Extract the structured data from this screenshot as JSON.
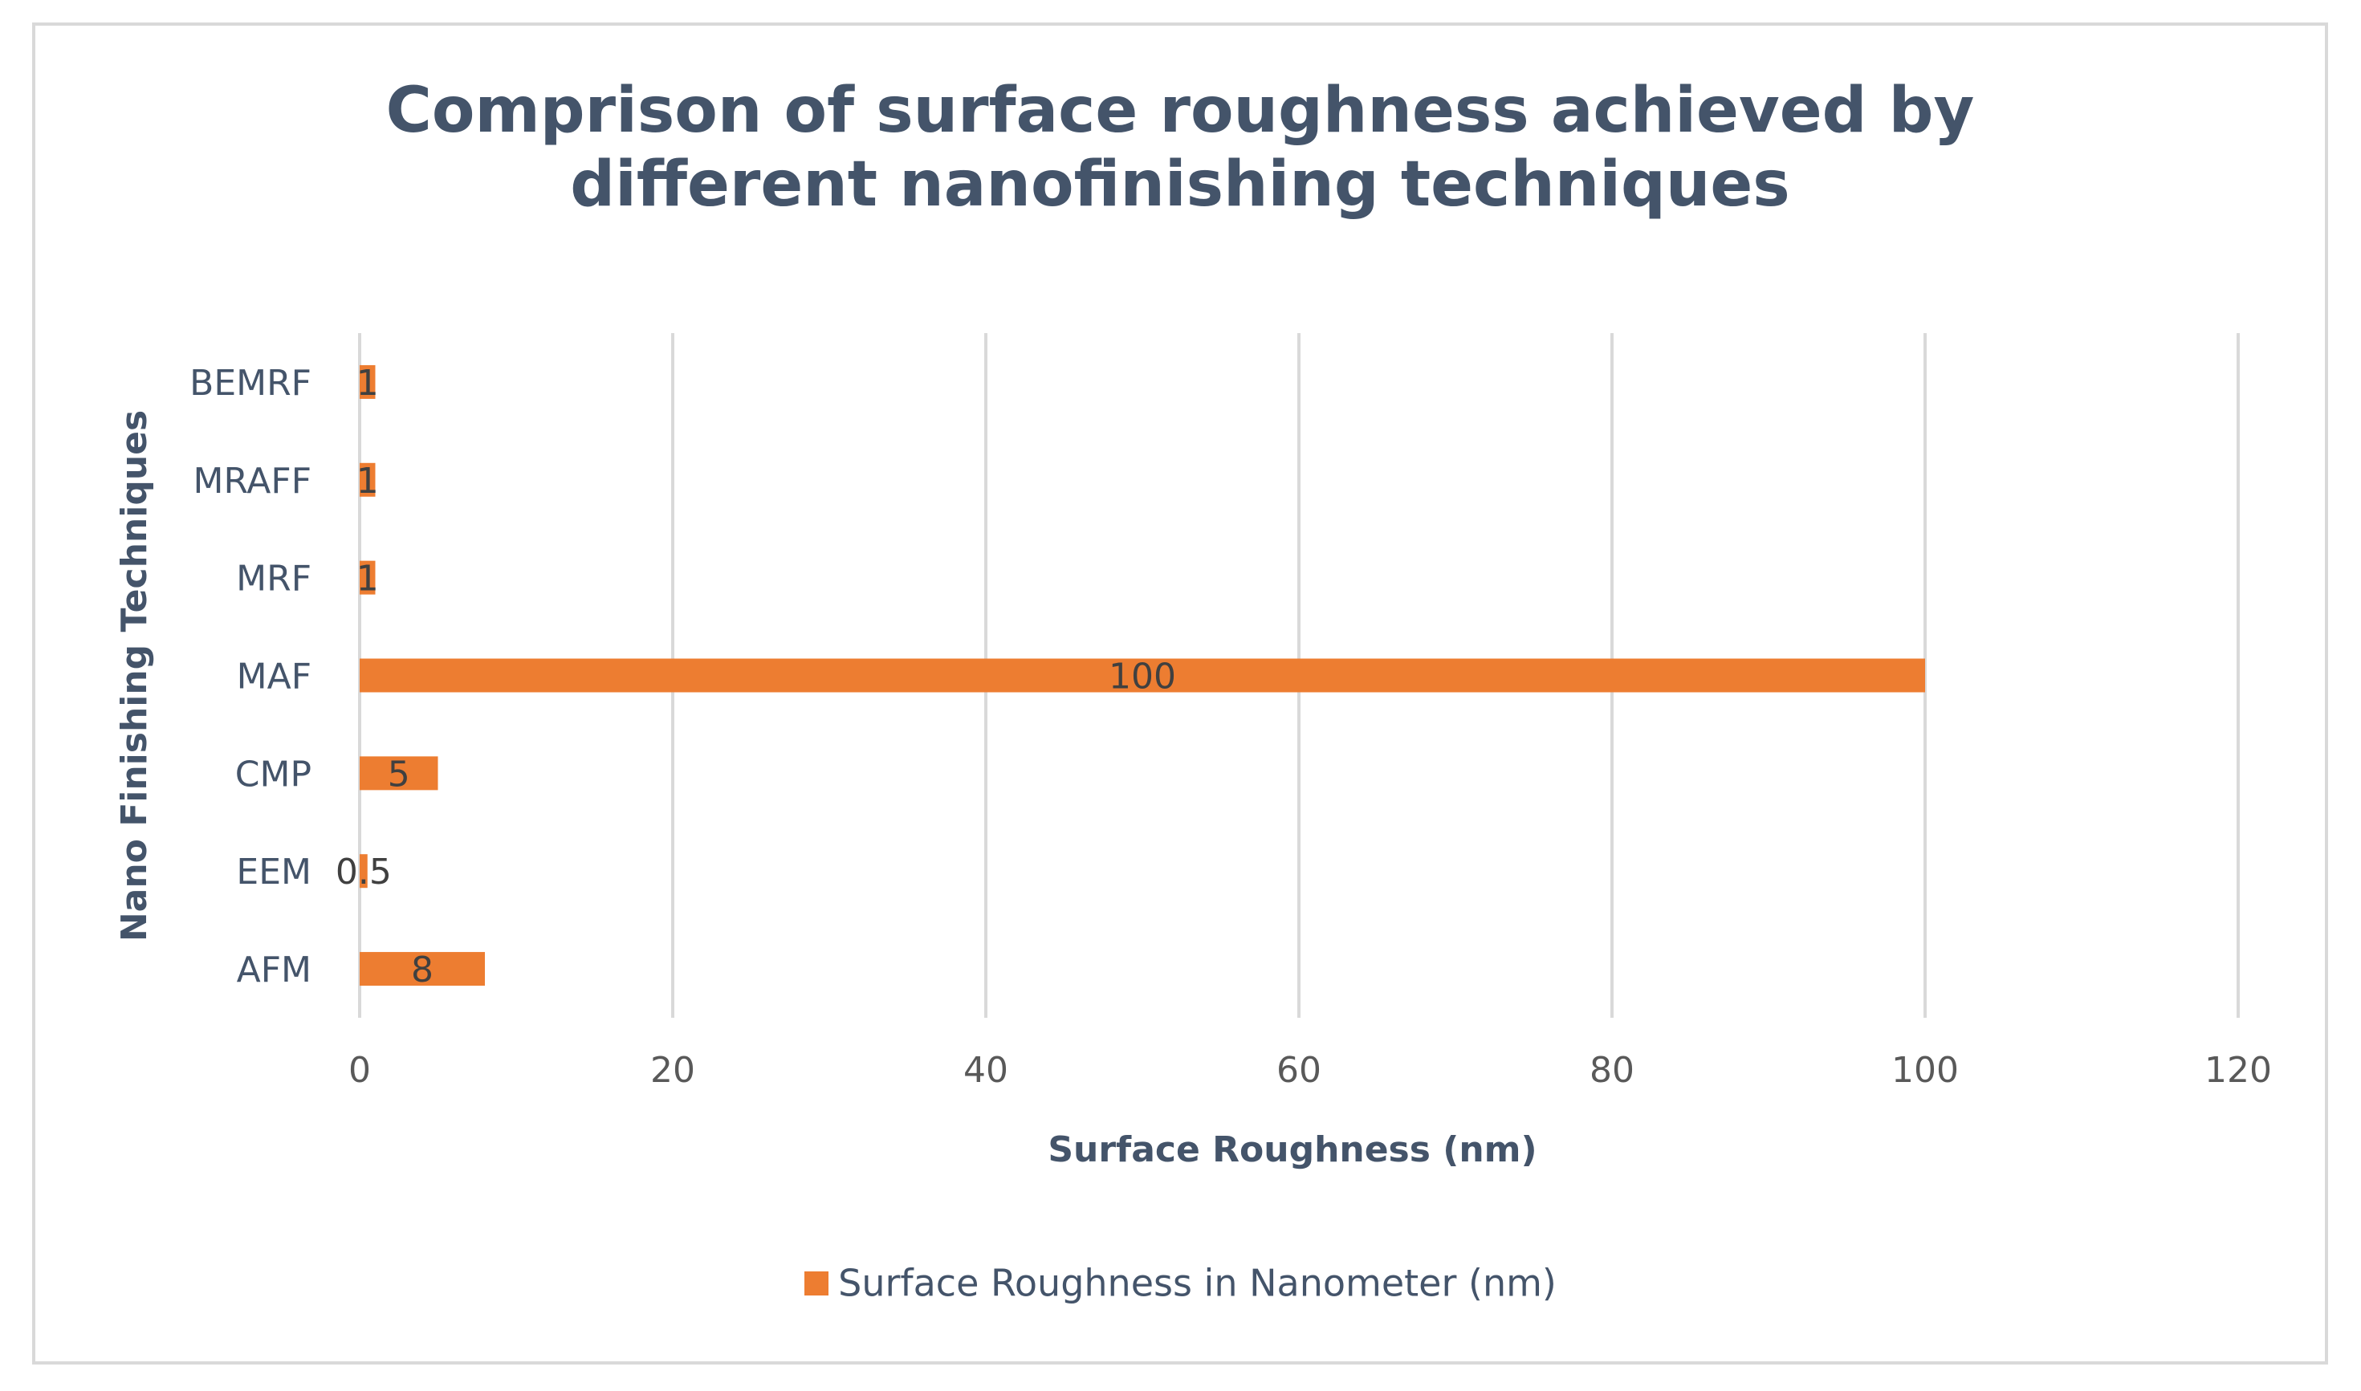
{
  "chart_data": {
    "type": "bar",
    "orientation": "horizontal",
    "title": "Comprison of surface roughness achieved by different nanofinishing techniques",
    "title_lines": [
      "Comprison of surface roughness achieved by",
      "different nanofinishing techniques"
    ],
    "xlabel": "Surface Roughness (nm)",
    "ylabel": "Nano Finishing Techniques",
    "categories": [
      "AFM",
      "EEM",
      "CMP",
      "MAF",
      "MRF",
      "MRAFF",
      "BEMRF"
    ],
    "series": [
      {
        "name": "Surface Roughness in Nanometer (nm)",
        "values": [
          8,
          0.5,
          5,
          100,
          1,
          1,
          1
        ],
        "data_labels": [
          "8",
          "0.5",
          "5",
          "100",
          "1",
          "1",
          "1"
        ],
        "color": "#ed7d31"
      }
    ],
    "xlim": [
      0,
      120
    ],
    "xticks": [
      "0",
      "20",
      "40",
      "60",
      "80",
      "100",
      "120"
    ],
    "grid": true,
    "legend_position": "bottom"
  }
}
